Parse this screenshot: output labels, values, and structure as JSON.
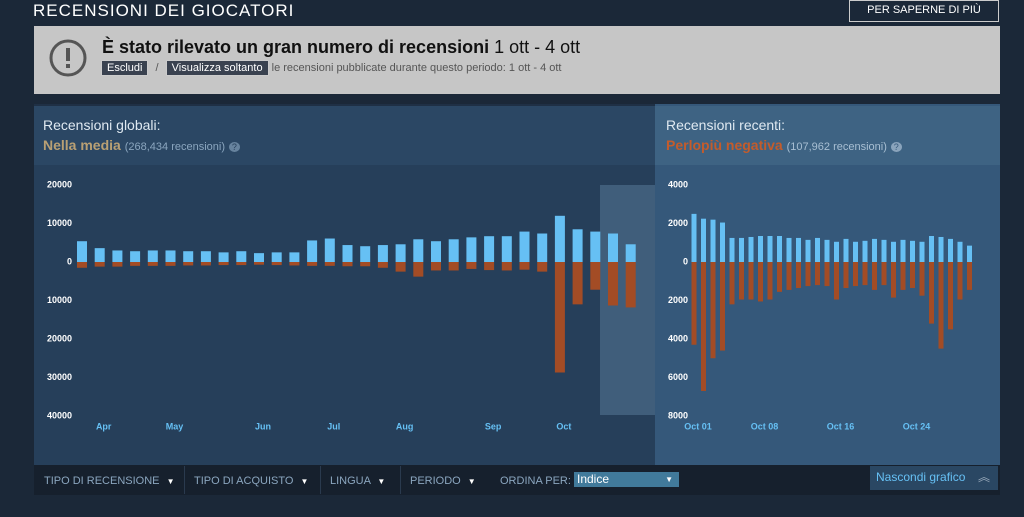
{
  "header": {
    "title": "RECENSIONI DEI GIOCATORI",
    "button": "PER SAPERNE DI PIÙ"
  },
  "alert": {
    "title": "È stato rilevato un gran numero di recensioni",
    "period": "1 ott - 4 ott",
    "exclude": "Escludi",
    "separator": "/",
    "only": "Visualizza soltanto",
    "note": "le recensioni pubblicate durante questo periodo: 1 ott - 4 ott"
  },
  "panels": [
    {
      "label": "Recensioni globali:",
      "rating": "Nella media",
      "count": "(268,434 recensioni)",
      "help": "?"
    },
    {
      "label": "Recensioni recenti:",
      "rating": "Perlopiù negativa",
      "count": "(107,962 recensioni)",
      "help": "?"
    }
  ],
  "chart_data": [
    {
      "type": "bar",
      "categories": [
        null,
        "Apr",
        null,
        null,
        null,
        "May",
        null,
        null,
        null,
        null,
        "Jun",
        null,
        null,
        null,
        "Jul",
        null,
        null,
        null,
        "Aug",
        null,
        null,
        null,
        null,
        "Sep",
        null,
        null,
        null,
        "Oct",
        null,
        null,
        null,
        null
      ],
      "series": [
        {
          "color": "#66c0f4",
          "values": [
            5400,
            3600,
            3000,
            2800,
            3000,
            3000,
            2800,
            2800,
            2500,
            2800,
            2300,
            2500,
            2500,
            5600,
            6100,
            4400,
            4100,
            4400,
            4600,
            5900,
            5400,
            5900,
            6400,
            6700,
            6700,
            7900,
            7400,
            12000,
            8500,
            7900,
            7400,
            4600
          ]
        },
        {
          "color": "#a34c25",
          "values": [
            -1500,
            -1200,
            -1200,
            -1000,
            -1000,
            -1000,
            -900,
            -900,
            -800,
            -800,
            -700,
            -800,
            -900,
            -1000,
            -1000,
            -1100,
            -1100,
            -1500,
            -2500,
            -3800,
            -2200,
            -2200,
            -1800,
            -2100,
            -2200,
            -2000,
            -2500,
            -28700,
            -11000,
            -7200,
            -11300,
            -11800
          ]
        }
      ],
      "ylim": [
        -40000,
        20000
      ],
      "yticks": [
        20000,
        10000,
        0,
        {
          "value": -10000,
          "label": "10000"
        },
        {
          "value": -20000,
          "label": "20000"
        },
        {
          "value": -30000,
          "label": "30000"
        },
        {
          "value": -40000,
          "label": "40000"
        }
      ]
    },
    {
      "type": "bar",
      "categories": [
        "Oct 01",
        null,
        null,
        null,
        null,
        null,
        null,
        "Oct 08",
        null,
        null,
        null,
        null,
        null,
        null,
        null,
        "Oct 16",
        null,
        null,
        null,
        null,
        null,
        null,
        null,
        "Oct 24",
        null,
        null,
        null,
        null,
        null,
        null
      ],
      "series": [
        {
          "color": "#66c0f4",
          "values": [
            2500,
            2250,
            2200,
            2050,
            1250,
            1250,
            1300,
            1350,
            1350,
            1350,
            1250,
            1250,
            1150,
            1250,
            1150,
            1050,
            1200,
            1050,
            1100,
            1200,
            1150,
            1050,
            1150,
            1100,
            1050,
            1350,
            1300,
            1200,
            1050,
            850
          ]
        },
        {
          "color": "#a34c25",
          "values": [
            -4300,
            -6700,
            -5000,
            -4600,
            -2200,
            -1950,
            -1950,
            -2050,
            -1950,
            -1550,
            -1450,
            -1350,
            -1250,
            -1200,
            -1250,
            -1950,
            -1350,
            -1250,
            -1200,
            -1450,
            -1200,
            -1850,
            -1450,
            -1350,
            -1750,
            -3200,
            -4500,
            -3500,
            -1950,
            -1450
          ]
        }
      ],
      "ylim": [
        -8000,
        4000
      ],
      "yticks": [
        4000,
        2000,
        0,
        {
          "value": -2000,
          "label": "2000"
        },
        {
          "value": -4000,
          "label": "4000"
        },
        {
          "value": -6000,
          "label": "6000"
        },
        {
          "value": -8000,
          "label": "8000"
        }
      ]
    }
  ],
  "filters": [
    "TIPO DI RECENSIONE",
    "TIPO DI ACQUISTO",
    "LINGUA",
    "PERIODO"
  ],
  "sort": {
    "label": "ORDINA PER:",
    "value": "Indice"
  },
  "hide": "Nascondi grafico"
}
